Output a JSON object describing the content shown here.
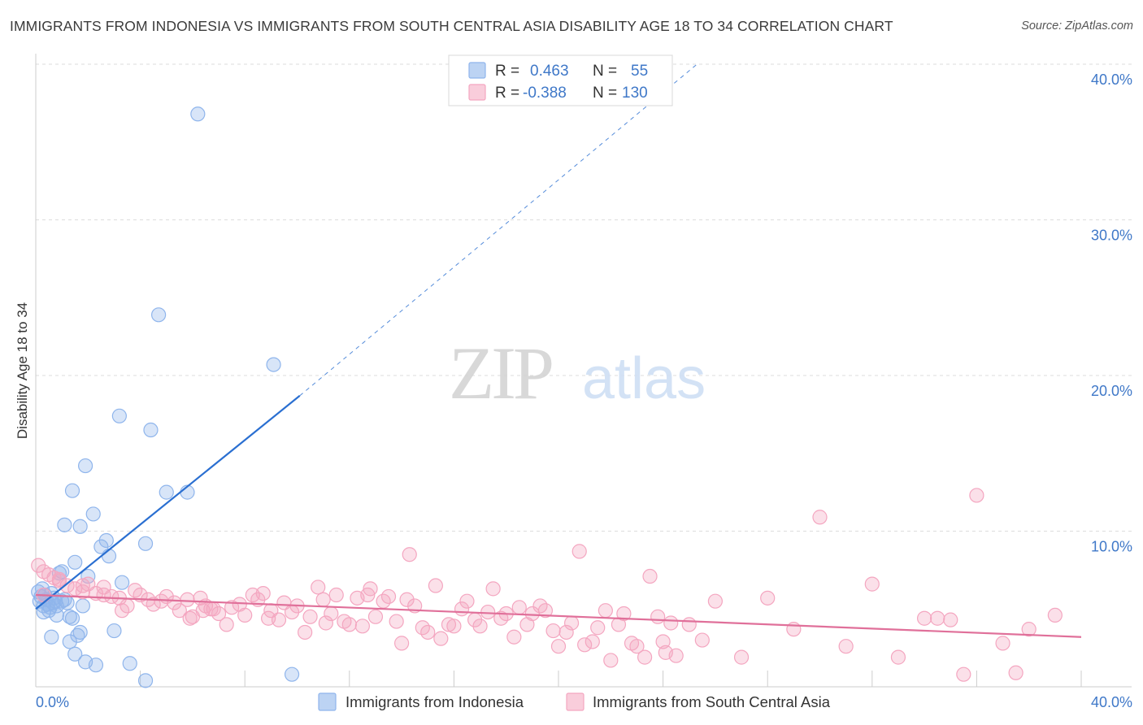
{
  "title": "IMMIGRANTS FROM INDONESIA VS IMMIGRANTS FROM SOUTH CENTRAL ASIA DISABILITY AGE 18 TO 34 CORRELATION CHART",
  "source": "Source: ZipAtlas.com",
  "watermark": {
    "zip": "ZIP",
    "atlas": "atlas"
  },
  "legend": {
    "rows": [
      {
        "r_label": "R =",
        "r_value": "0.463",
        "n_label": "N =",
        "n_value": "55",
        "color": "#8fb5ec"
      },
      {
        "r_label": "R =",
        "r_value": "-0.388",
        "n_label": "N =",
        "n_value": "130",
        "color": "#f4a6c0"
      }
    ]
  },
  "bottom_legend": [
    {
      "label": "Immigrants from Indonesia",
      "color": "#8fb5ec"
    },
    {
      "label": "Immigrants from South Central Asia",
      "color": "#f4a6c0"
    }
  ],
  "chart_data": {
    "type": "scatter",
    "title": "IMMIGRANTS FROM INDONESIA VS IMMIGRANTS FROM SOUTH CENTRAL ASIA DISABILITY AGE 18 TO 34 CORRELATION CHART",
    "xlabel": "",
    "ylabel": "Disability Age 18 to 34",
    "xlim": [
      0,
      40
    ],
    "ylim": [
      0,
      40
    ],
    "x_tick_labels": [
      "0.0%",
      "40.0%"
    ],
    "y_tick_labels": [
      "10.0%",
      "20.0%",
      "30.0%",
      "40.0%"
    ],
    "y_ticks": [
      10,
      20,
      30,
      40
    ],
    "grid": true,
    "legend_position": "top-center",
    "series": [
      {
        "name": "Immigrants from Indonesia",
        "color": "#8fb5ec",
        "line_color": "#2a6fd1",
        "points": [
          [
            0.1,
            6.1
          ],
          [
            0.2,
            5.8
          ],
          [
            0.15,
            5.5
          ],
          [
            0.25,
            6.3
          ],
          [
            0.3,
            5.2
          ],
          [
            0.35,
            5.9
          ],
          [
            0.4,
            5.6
          ],
          [
            0.45,
            5.3
          ],
          [
            0.5,
            4.9
          ],
          [
            0.55,
            5.1
          ],
          [
            0.6,
            6.0
          ],
          [
            0.65,
            5.4
          ],
          [
            0.7,
            5.7
          ],
          [
            0.75,
            5.5
          ],
          [
            0.8,
            5.2
          ],
          [
            0.9,
            7.3
          ],
          [
            1.0,
            7.4
          ],
          [
            1.1,
            5.6
          ],
          [
            1.2,
            5.4
          ],
          [
            1.3,
            4.5
          ],
          [
            1.4,
            4.4
          ],
          [
            1.5,
            8.0
          ],
          [
            1.6,
            3.3
          ],
          [
            1.7,
            3.5
          ],
          [
            1.8,
            5.2
          ],
          [
            1.9,
            1.6
          ],
          [
            2.0,
            7.1
          ],
          [
            2.3,
            1.4
          ],
          [
            2.5,
            9.0
          ],
          [
            2.7,
            9.4
          ],
          [
            2.8,
            8.4
          ],
          [
            3.0,
            3.6
          ],
          [
            3.3,
            6.7
          ],
          [
            3.6,
            1.5
          ],
          [
            4.2,
            9.2
          ],
          [
            2.2,
            11.1
          ],
          [
            1.1,
            10.4
          ],
          [
            1.7,
            10.3
          ],
          [
            1.4,
            12.6
          ],
          [
            1.9,
            14.2
          ],
          [
            3.2,
            17.4
          ],
          [
            4.4,
            16.5
          ],
          [
            5.0,
            12.5
          ],
          [
            5.8,
            12.5
          ],
          [
            4.7,
            23.9
          ],
          [
            6.2,
            36.8
          ],
          [
            9.1,
            20.7
          ],
          [
            0.6,
            3.2
          ],
          [
            1.3,
            2.9
          ],
          [
            1.5,
            2.1
          ],
          [
            4.2,
            0.4
          ],
          [
            9.8,
            0.8
          ],
          [
            0.8,
            4.6
          ],
          [
            1.0,
            5.5
          ],
          [
            0.3,
            4.8
          ]
        ],
        "trend": {
          "x0": 0.0,
          "y0": 5.0,
          "x1": 10.1,
          "y1": 18.7,
          "dash_to_x": 25.3,
          "dash_to_y": 40.0
        }
      },
      {
        "name": "Immigrants from South Central Asia",
        "color": "#f4a6c0",
        "line_color": "#e0709a",
        "points": [
          [
            0.1,
            7.8
          ],
          [
            0.3,
            7.4
          ],
          [
            0.5,
            7.2
          ],
          [
            0.7,
            7.0
          ],
          [
            0.9,
            6.8
          ],
          [
            1.2,
            6.5
          ],
          [
            1.5,
            6.3
          ],
          [
            1.8,
            6.1
          ],
          [
            2.0,
            6.6
          ],
          [
            2.3,
            6.0
          ],
          [
            2.6,
            5.9
          ],
          [
            2.9,
            5.8
          ],
          [
            3.2,
            5.7
          ],
          [
            3.5,
            5.2
          ],
          [
            3.8,
            6.2
          ],
          [
            4.0,
            5.9
          ],
          [
            4.3,
            5.6
          ],
          [
            4.5,
            5.3
          ],
          [
            4.8,
            5.5
          ],
          [
            5.0,
            5.8
          ],
          [
            5.3,
            5.4
          ],
          [
            5.5,
            4.9
          ],
          [
            5.8,
            5.6
          ],
          [
            6.0,
            4.5
          ],
          [
            6.3,
            5.7
          ],
          [
            6.5,
            5.2
          ],
          [
            6.8,
            5.0
          ],
          [
            7.0,
            4.7
          ],
          [
            7.3,
            4.0
          ],
          [
            7.5,
            5.1
          ],
          [
            7.8,
            5.3
          ],
          [
            8.0,
            4.6
          ],
          [
            8.3,
            5.9
          ],
          [
            8.5,
            5.6
          ],
          [
            8.7,
            6.0
          ],
          [
            9.0,
            4.9
          ],
          [
            9.3,
            4.3
          ],
          [
            9.5,
            5.4
          ],
          [
            9.8,
            4.8
          ],
          [
            10.0,
            5.2
          ],
          [
            10.3,
            3.5
          ],
          [
            10.5,
            4.5
          ],
          [
            10.8,
            6.4
          ],
          [
            11.0,
            5.6
          ],
          [
            11.3,
            4.7
          ],
          [
            11.5,
            5.9
          ],
          [
            11.8,
            4.2
          ],
          [
            12.0,
            4.0
          ],
          [
            12.3,
            5.7
          ],
          [
            12.5,
            3.9
          ],
          [
            12.8,
            6.3
          ],
          [
            13.0,
            4.5
          ],
          [
            13.3,
            5.5
          ],
          [
            13.5,
            5.8
          ],
          [
            13.8,
            4.2
          ],
          [
            14.0,
            2.8
          ],
          [
            14.3,
            8.5
          ],
          [
            14.5,
            5.2
          ],
          [
            14.8,
            3.8
          ],
          [
            15.0,
            3.5
          ],
          [
            15.3,
            6.5
          ],
          [
            15.5,
            3.1
          ],
          [
            15.8,
            4.0
          ],
          [
            16.0,
            3.9
          ],
          [
            16.3,
            5.0
          ],
          [
            16.5,
            5.5
          ],
          [
            16.8,
            4.3
          ],
          [
            17.0,
            3.9
          ],
          [
            17.3,
            4.8
          ],
          [
            17.5,
            6.3
          ],
          [
            17.8,
            4.4
          ],
          [
            18.0,
            4.7
          ],
          [
            18.3,
            3.2
          ],
          [
            18.5,
            5.1
          ],
          [
            18.8,
            4.0
          ],
          [
            19.0,
            4.7
          ],
          [
            19.3,
            5.2
          ],
          [
            19.5,
            4.9
          ],
          [
            19.8,
            3.6
          ],
          [
            20.0,
            2.6
          ],
          [
            20.3,
            3.5
          ],
          [
            20.5,
            4.1
          ],
          [
            20.8,
            8.7
          ],
          [
            21.0,
            2.7
          ],
          [
            21.3,
            2.9
          ],
          [
            21.5,
            3.8
          ],
          [
            21.8,
            4.9
          ],
          [
            22.0,
            1.7
          ],
          [
            22.3,
            4.0
          ],
          [
            22.5,
            4.7
          ],
          [
            22.8,
            2.8
          ],
          [
            23.0,
            2.6
          ],
          [
            23.3,
            1.9
          ],
          [
            23.5,
            7.1
          ],
          [
            23.8,
            4.5
          ],
          [
            24.0,
            2.9
          ],
          [
            24.3,
            4.1
          ],
          [
            24.5,
            2.0
          ],
          [
            25.0,
            4.0
          ],
          [
            25.5,
            3.0
          ],
          [
            26.0,
            5.5
          ],
          [
            27.0,
            1.9
          ],
          [
            28.0,
            5.7
          ],
          [
            29.0,
            3.7
          ],
          [
            30.0,
            10.9
          ],
          [
            31.0,
            2.6
          ],
          [
            32.0,
            6.6
          ],
          [
            33.0,
            1.9
          ],
          [
            34.0,
            4.4
          ],
          [
            34.5,
            4.4
          ],
          [
            35.0,
            4.3
          ],
          [
            35.5,
            0.8
          ],
          [
            36.0,
            12.3
          ],
          [
            37.0,
            2.8
          ],
          [
            37.5,
            0.9
          ],
          [
            38.0,
            3.7
          ],
          [
            39.0,
            4.6
          ],
          [
            3.3,
            4.9
          ],
          [
            5.9,
            4.4
          ],
          [
            2.6,
            6.4
          ],
          [
            1.8,
            6.5
          ],
          [
            0.3,
            5.9
          ],
          [
            0.9,
            6.9
          ],
          [
            6.7,
            5.0
          ],
          [
            8.9,
            4.4
          ],
          [
            12.7,
            5.9
          ],
          [
            14.2,
            5.6
          ],
          [
            11.1,
            4.1
          ],
          [
            6.4,
            4.9
          ],
          [
            24.1,
            2.2
          ]
        ],
        "trend": {
          "x0": 0.0,
          "y0": 5.9,
          "x1": 40.0,
          "y1": 3.2
        }
      }
    ]
  }
}
